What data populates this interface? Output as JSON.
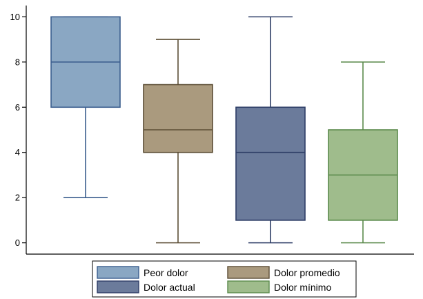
{
  "chart_data": {
    "type": "box",
    "title": "",
    "xlabel": "",
    "ylabel": "",
    "ylim": [
      -0.5,
      10.5
    ],
    "yticks": [
      0,
      2,
      4,
      6,
      8,
      10
    ],
    "grid": false,
    "legend_position": "bottom",
    "series": [
      {
        "name": "Peor dolor",
        "color": "#8aa7c3",
        "edge": "#3b5e8e",
        "whisker_low": 2,
        "q1": 6,
        "median": 8,
        "q3": 10,
        "whisker_high": 10
      },
      {
        "name": "Dolor promedio",
        "color": "#aa9a7e",
        "edge": "#5c4e35",
        "whisker_low": 0,
        "q1": 4,
        "median": 5,
        "q3": 7,
        "whisker_high": 9
      },
      {
        "name": "Dolor actual",
        "color": "#6b7b9b",
        "edge": "#2d3d66",
        "whisker_low": 0,
        "q1": 1,
        "median": 4,
        "q3": 6,
        "whisker_high": 10
      },
      {
        "name": "Dolor mínimo",
        "color": "#9fbc8c",
        "edge": "#5b8a4c",
        "whisker_low": 0,
        "q1": 1,
        "median": 3,
        "q3": 5,
        "whisker_high": 8
      }
    ]
  }
}
